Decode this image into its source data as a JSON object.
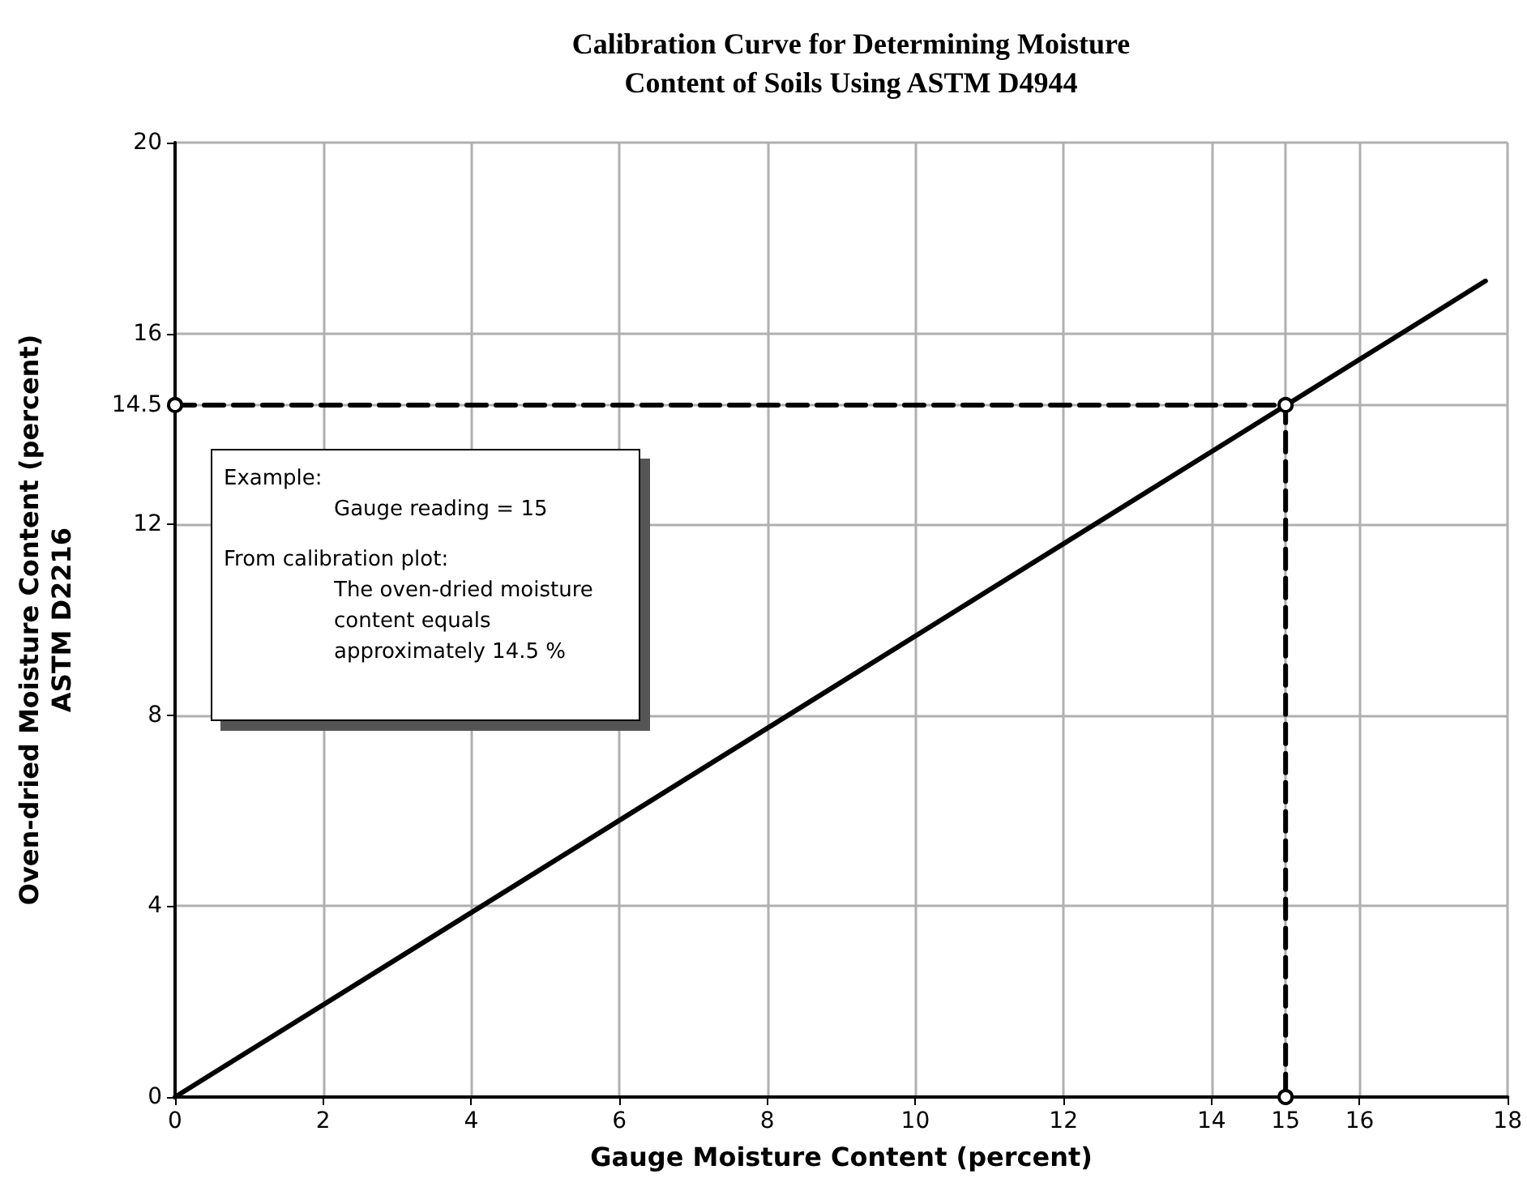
{
  "chart_data": {
    "type": "line",
    "title": "Calibration Curve for Determining Moisture\nContent of Soils Using ASTM D4944",
    "xlabel": "Gauge Moisture Content (percent)",
    "ylabel": "Oven-dried Moisture Content (percent)\nASTM D2216",
    "xlim": [
      0,
      18
    ],
    "xticks": [
      0,
      2,
      4,
      6,
      8,
      10,
      12,
      14,
      15,
      16,
      18
    ],
    "ylim": [
      0,
      20
    ],
    "yticks": [
      0,
      4,
      8,
      12,
      14.5,
      16,
      20
    ],
    "grid": true,
    "series": [
      {
        "color": "#000000",
        "x": [
          0,
          17.7
        ],
        "values": [
          0,
          17.1
        ],
        "marker": "none",
        "line_style": "solid"
      },
      {
        "color": "#000000",
        "x": [
          0,
          15,
          15
        ],
        "values": [
          14.5,
          14.5,
          0
        ],
        "marker": "circle",
        "line_style": "dashed"
      }
    ],
    "annotations": [
      "Example:",
      "Gauge reading = 15",
      "From calibration plot:",
      "The oven-dried moisture\ncontent equals\napproximately 14.5 %"
    ]
  }
}
